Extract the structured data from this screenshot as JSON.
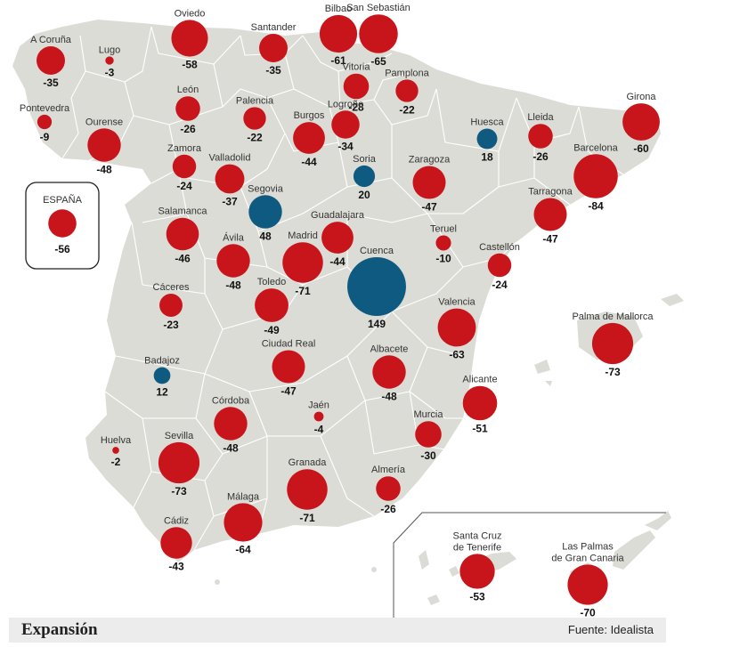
{
  "colors": {
    "sea": "#ffffff",
    "land": "#dcdcd6",
    "border": "#ffffff",
    "decrease": "#c8141b",
    "increase": "#0f5a80",
    "label_name": "#333333",
    "label_value": "#111111"
  },
  "legend_box": {
    "label": "ESPAÑA",
    "value": -56
  },
  "canarias_inset": true,
  "footer": {
    "brand": "Expansión",
    "source": "Fuente: Idealista"
  },
  "cities": [
    {
      "name": "A Coruña",
      "value": -35
    },
    {
      "name": "Lugo",
      "value": -3
    },
    {
      "name": "Oviedo",
      "value": -58
    },
    {
      "name": "Santander",
      "value": -35
    },
    {
      "name": "Bilbao",
      "value": -61
    },
    {
      "name": "San Sebastián",
      "value": -65
    },
    {
      "name": "Pontevedra",
      "value": -9
    },
    {
      "name": "Ourense",
      "value": -48
    },
    {
      "name": "León",
      "value": -26
    },
    {
      "name": "Palencia",
      "value": -22
    },
    {
      "name": "Burgos",
      "value": -44
    },
    {
      "name": "Vitoria",
      "value": -28
    },
    {
      "name": "Logroño",
      "value": -34
    },
    {
      "name": "Pamplona",
      "value": -22
    },
    {
      "name": "Huesca",
      "value": 18
    },
    {
      "name": "Lleida",
      "value": -26
    },
    {
      "name": "Girona",
      "value": -60
    },
    {
      "name": "Barcelona",
      "value": -84
    },
    {
      "name": "Tarragona",
      "value": -47
    },
    {
      "name": "Zaragoza",
      "value": -47
    },
    {
      "name": "Soria",
      "value": 20
    },
    {
      "name": "Zamora",
      "value": -24
    },
    {
      "name": "Valladolid",
      "value": -37
    },
    {
      "name": "Segovia",
      "value": 48
    },
    {
      "name": "Salamanca",
      "value": -46
    },
    {
      "name": "Ávila",
      "value": -48
    },
    {
      "name": "Madrid",
      "value": -71
    },
    {
      "name": "Guadalajara",
      "value": -44
    },
    {
      "name": "Teruel",
      "value": -10
    },
    {
      "name": "Castellón",
      "value": -24
    },
    {
      "name": "Cuenca",
      "value": 149
    },
    {
      "name": "Cáceres",
      "value": -23
    },
    {
      "name": "Toledo",
      "value": -49
    },
    {
      "name": "Valencia",
      "value": -63
    },
    {
      "name": "Palma de Mallorca",
      "value": -73
    },
    {
      "name": "Badajoz",
      "value": 12
    },
    {
      "name": "Ciudad Real",
      "value": -47
    },
    {
      "name": "Albacete",
      "value": -48
    },
    {
      "name": "Alicante",
      "value": -51
    },
    {
      "name": "Córdoba",
      "value": -48
    },
    {
      "name": "Jaén",
      "value": -4
    },
    {
      "name": "Murcia",
      "value": -30
    },
    {
      "name": "Huelva",
      "value": -2
    },
    {
      "name": "Sevilla",
      "value": -73
    },
    {
      "name": "Granada",
      "value": -71
    },
    {
      "name": "Almería",
      "value": -26
    },
    {
      "name": "Málaga",
      "value": -64
    },
    {
      "name": "Cádiz",
      "value": -43
    },
    {
      "name": "Santa Cruz\nde Tenerife",
      "value": -53
    },
    {
      "name": "Las Palmas\nde Gran Canaria",
      "value": -70
    }
  ]
}
